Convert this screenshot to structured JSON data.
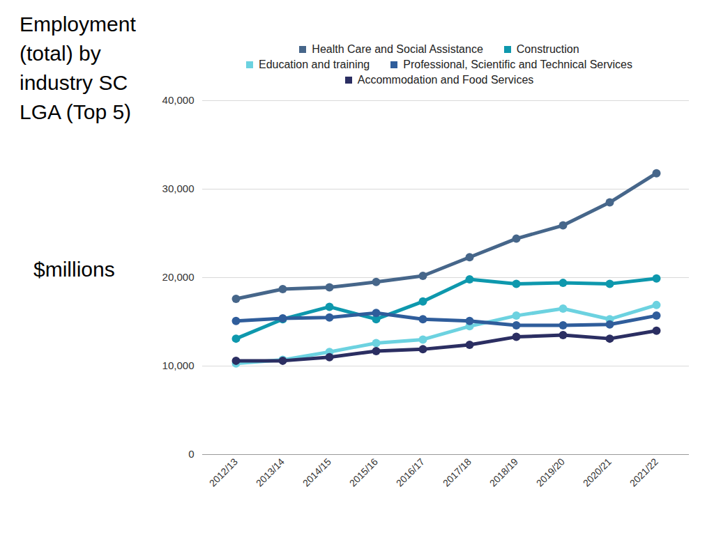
{
  "chart_data": {
    "type": "line",
    "title": "Employment (total) by industry SC LGA (Top 5)",
    "y_label": "$millions",
    "categories": [
      "2012/13",
      "2013/14",
      "2014/15",
      "2015/16",
      "2016/17",
      "2017/18",
      "2018/19",
      "2019/20",
      "2020/21",
      "2021/22"
    ],
    "series": [
      {
        "name": "Health Care and Social Assistance",
        "color": "#46668a",
        "values": [
          17600,
          18700,
          18900,
          19500,
          20200,
          22300,
          24400,
          25900,
          28500,
          31800
        ]
      },
      {
        "name": "Construction",
        "color": "#0e98ad",
        "values": [
          13100,
          15300,
          16700,
          15300,
          17300,
          19800,
          19300,
          19400,
          19300,
          19900
        ]
      },
      {
        "name": "Education and training",
        "color": "#6cd2e0",
        "values": [
          10300,
          10700,
          11600,
          12600,
          13000,
          14500,
          15700,
          16500,
          15300,
          16900
        ]
      },
      {
        "name": "Professional, Scientific and Technical Services",
        "color": "#2f5d9b",
        "values": [
          15100,
          15400,
          15500,
          16000,
          15300,
          15100,
          14600,
          14600,
          14700,
          15700
        ]
      },
      {
        "name": "Accommodation and Food Services",
        "color": "#2b2e62",
        "values": [
          10600,
          10600,
          11000,
          11700,
          11900,
          12400,
          13300,
          13500,
          13100,
          14000
        ]
      }
    ],
    "ylim": [
      0,
      40000
    ],
    "yticks": [
      0,
      {
        "value": 10000,
        "label": "10,000"
      },
      {
        "value": 20000,
        "label": "20,000"
      },
      {
        "value": 30000,
        "label": "30,000"
      },
      {
        "value": 40000,
        "label": "40,000"
      }
    ],
    "grid": true,
    "legend": "top",
    "marker": "circle",
    "line_style": "solid"
  }
}
